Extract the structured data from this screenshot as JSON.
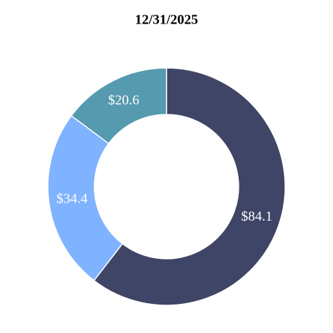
{
  "chart_data": {
    "type": "donut",
    "title": "12/31/2025",
    "values": [
      84.1,
      34.4,
      20.6
    ],
    "value_labels": [
      "$84.1",
      "$34.4",
      "$20.6"
    ],
    "colors": [
      "#3f4566",
      "#7fb3ff",
      "#559aae"
    ]
  }
}
